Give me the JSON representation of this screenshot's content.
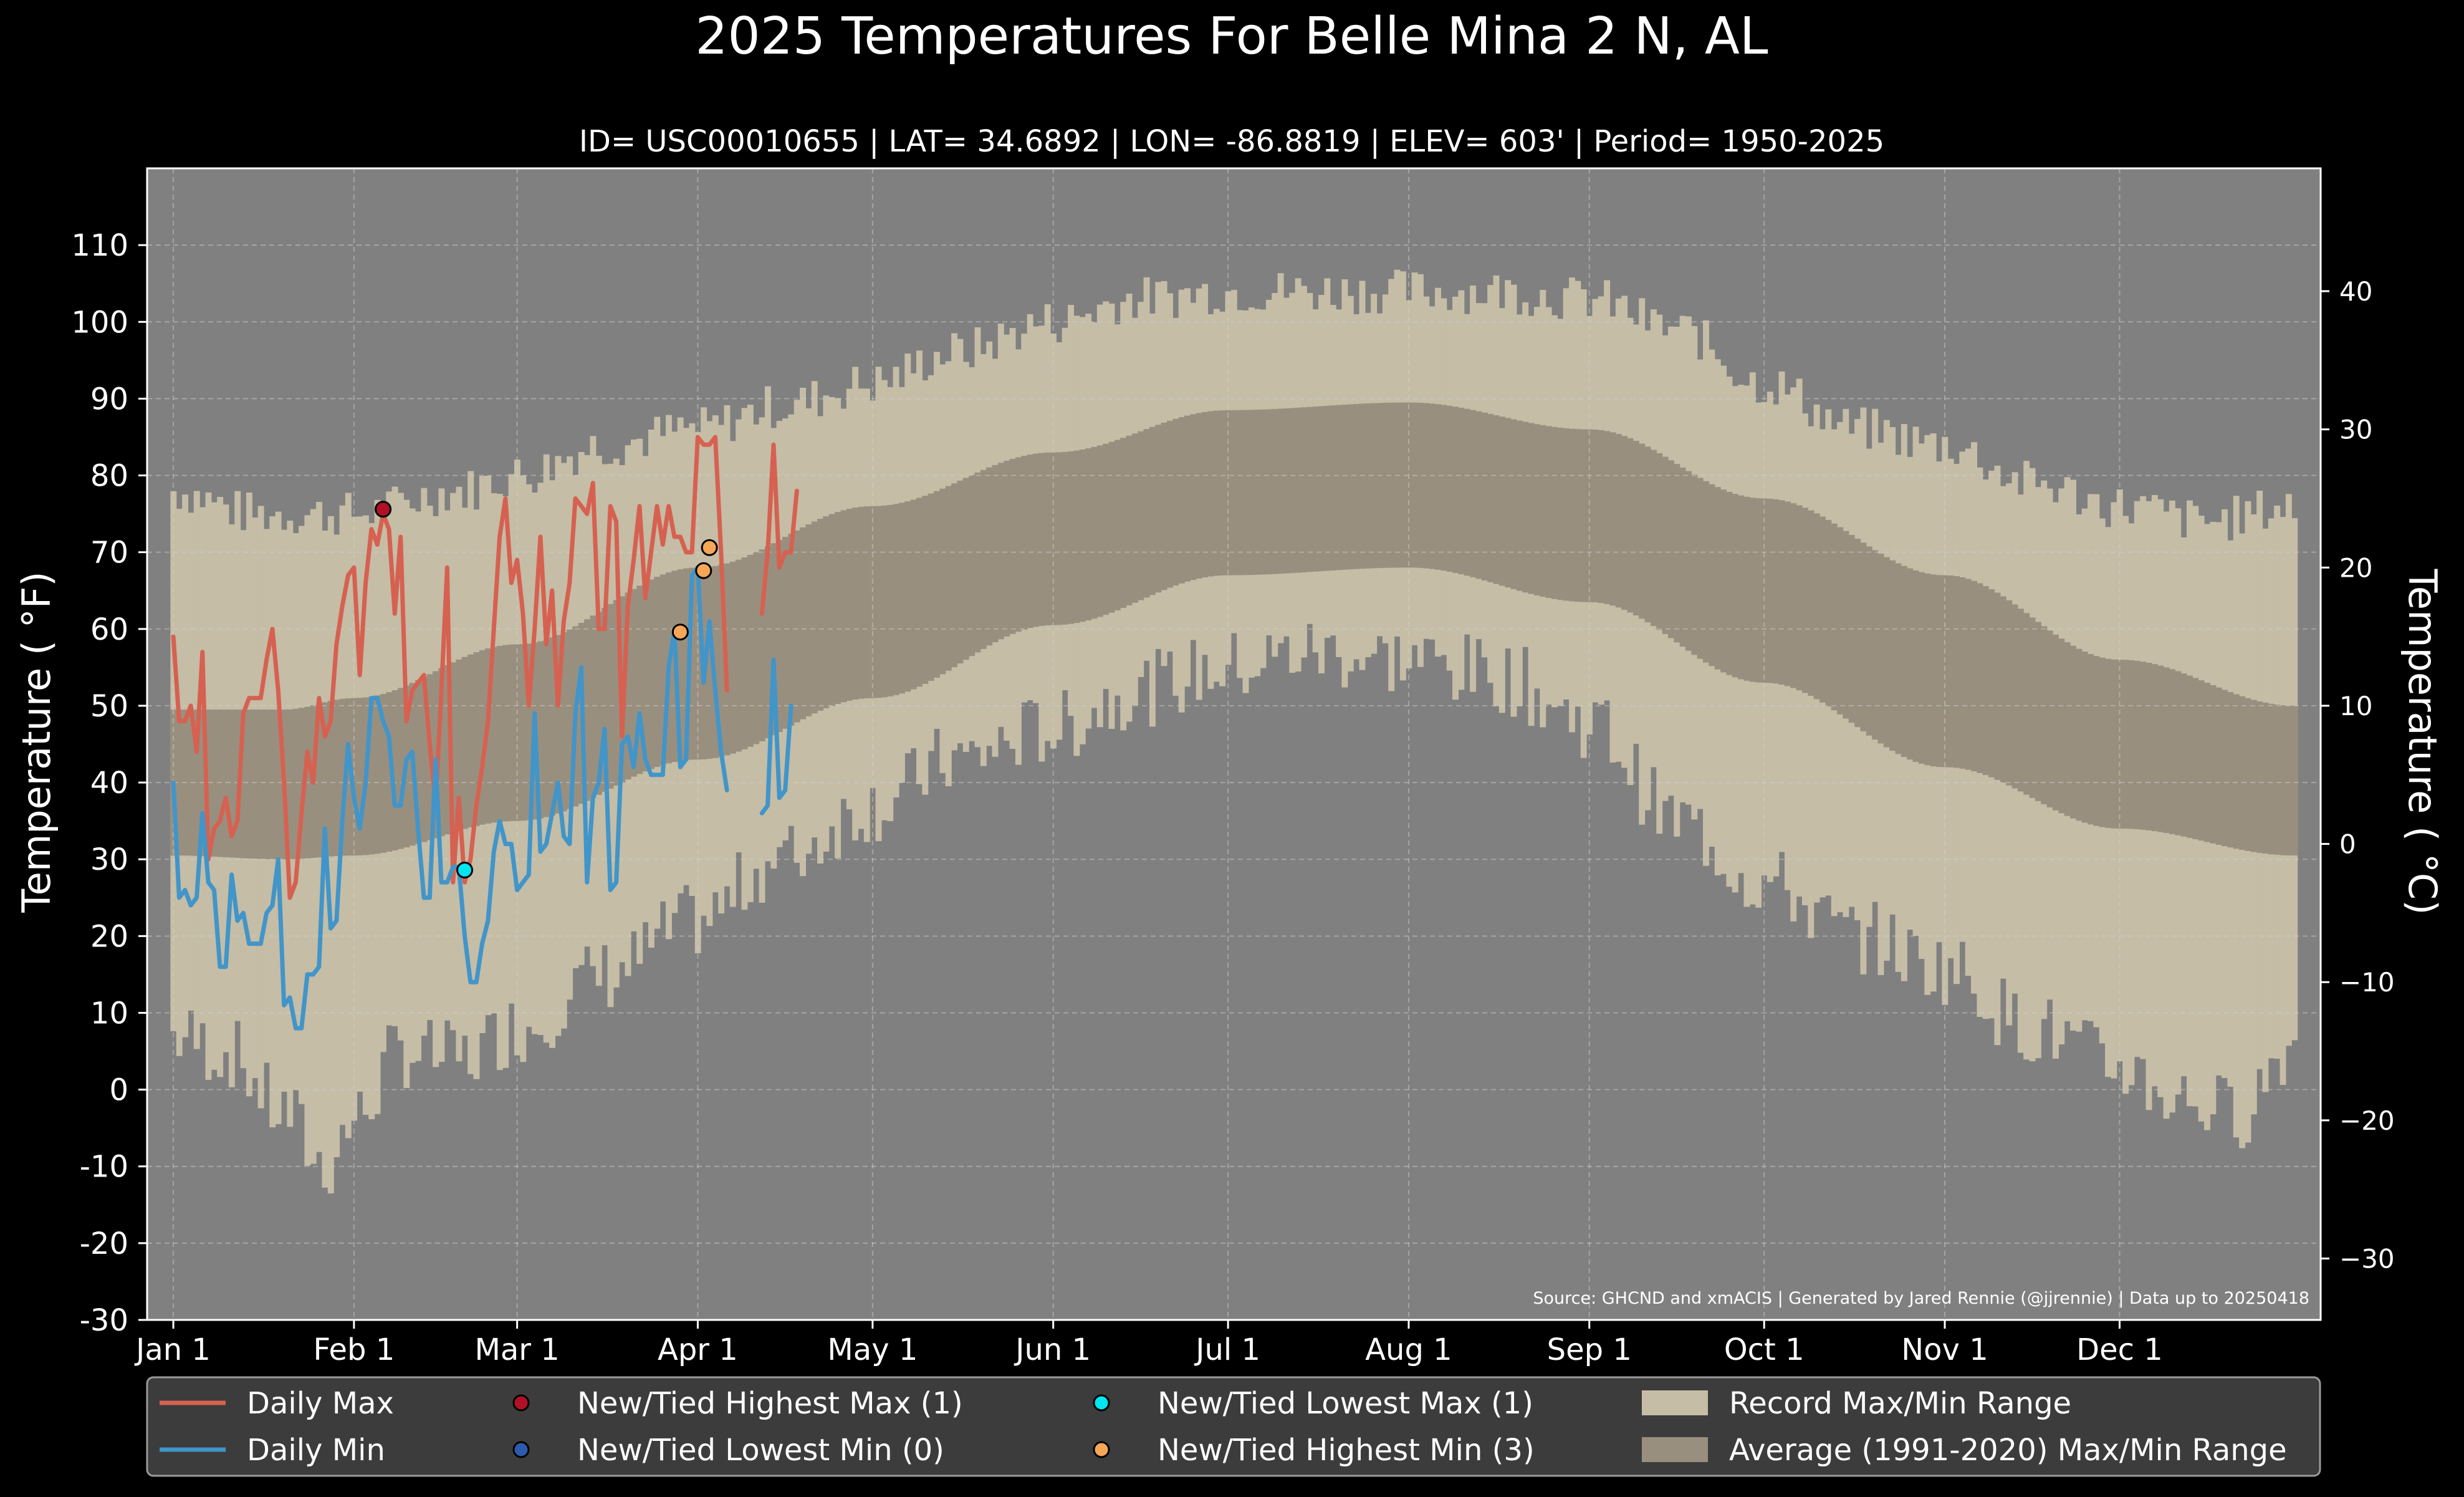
{
  "chart_data": {
    "type": "line",
    "title": "2025 Temperatures For Belle Mina 2 N, AL",
    "subtitle": "ID= USC00010655 | LAT= 34.6892 | LON= -86.8819 | ELEV= 603' | Period= 1950-2025",
    "ylabel_left": "Temperature ($^\\circ$F)",
    "ylabel_left_display": "Temperature ( °F)",
    "ylabel_right_display": "Temperature ( °C)",
    "source": "Source: GHCND and xmACIS | Generated by Jared Rennie (@jjrennie) | Data up to 20250418",
    "ylim_f": [
      -30,
      120
    ],
    "yticks_f": [
      "110",
      "100",
      "90",
      "80",
      "70",
      "60",
      "50",
      "40",
      "30",
      "20",
      "10",
      "0",
      "-10",
      "-20",
      "-30"
    ],
    "yticks_c": [
      "40",
      "30",
      "20",
      "10",
      "0",
      "−10",
      "−20",
      "−30"
    ],
    "x_month_ticks": [
      "Jan 1",
      "Feb 1",
      "Mar 1",
      "Apr 1",
      "May 1",
      "Jun 1",
      "Jul 1",
      "Aug 1",
      "Sep 1",
      "Oct 1",
      "Nov 1",
      "Dec 1"
    ],
    "x_month_doy": [
      1,
      32,
      60,
      91,
      121,
      152,
      182,
      213,
      244,
      274,
      305,
      335
    ],
    "xlim_doy": [
      -3.5,
      369.5
    ],
    "grid": true,
    "colors": {
      "background": "#000000",
      "plot_bg": "#808080",
      "record_range": "#c5bda6",
      "normal_range": "#998f7f",
      "daily_max": "#d66151",
      "daily_min": "#4195c9",
      "new_high_max": "#b11125",
      "new_low_min": "#2c5bae",
      "new_low_max": "#00e5ef",
      "new_high_min": "#f6a657"
    },
    "record_max_anchors": [
      [
        1,
        78
      ],
      [
        15,
        75
      ],
      [
        32,
        75
      ],
      [
        50,
        78
      ],
      [
        60,
        80
      ],
      [
        75,
        84
      ],
      [
        91,
        86
      ],
      [
        105,
        89
      ],
      [
        121,
        92
      ],
      [
        135,
        96
      ],
      [
        152,
        100
      ],
      [
        166,
        103
      ],
      [
        182,
        104
      ],
      [
        196,
        104
      ],
      [
        213,
        104
      ],
      [
        228,
        104
      ],
      [
        244,
        103
      ],
      [
        259,
        99
      ],
      [
        274,
        92
      ],
      [
        290,
        86
      ],
      [
        305,
        84
      ],
      [
        320,
        79
      ],
      [
        335,
        76
      ],
      [
        350,
        74
      ],
      [
        365,
        76
      ]
    ],
    "record_min_anchors": [
      [
        1,
        7
      ],
      [
        10,
        5
      ],
      [
        20,
        -3
      ],
      [
        27,
        -10
      ],
      [
        32,
        -4
      ],
      [
        40,
        5
      ],
      [
        50,
        4
      ],
      [
        60,
        8
      ],
      [
        75,
        15
      ],
      [
        91,
        22
      ],
      [
        105,
        30
      ],
      [
        121,
        37
      ],
      [
        135,
        43
      ],
      [
        152,
        47
      ],
      [
        166,
        52
      ],
      [
        182,
        55
      ],
      [
        196,
        57
      ],
      [
        213,
        56
      ],
      [
        228,
        54
      ],
      [
        244,
        48
      ],
      [
        259,
        35
      ],
      [
        274,
        27
      ],
      [
        290,
        20
      ],
      [
        305,
        16
      ],
      [
        320,
        8
      ],
      [
        335,
        3
      ],
      [
        345,
        -1
      ],
      [
        355,
        -3
      ],
      [
        365,
        6
      ]
    ],
    "normal_max_anchors": [
      [
        1,
        49.5
      ],
      [
        20,
        49.5
      ],
      [
        32,
        51
      ],
      [
        60,
        58
      ],
      [
        91,
        68
      ],
      [
        121,
        76
      ],
      [
        152,
        83
      ],
      [
        182,
        88.5
      ],
      [
        213,
        89.5
      ],
      [
        244,
        86
      ],
      [
        274,
        77
      ],
      [
        305,
        67
      ],
      [
        335,
        56
      ],
      [
        365,
        50
      ]
    ],
    "normal_min_anchors": [
      [
        1,
        30.5
      ],
      [
        20,
        30
      ],
      [
        32,
        30.5
      ],
      [
        60,
        35
      ],
      [
        91,
        43
      ],
      [
        121,
        51
      ],
      [
        152,
        60.5
      ],
      [
        182,
        67
      ],
      [
        213,
        68
      ],
      [
        244,
        63.5
      ],
      [
        274,
        53
      ],
      [
        305,
        42
      ],
      [
        335,
        34
      ],
      [
        365,
        30.5
      ]
    ],
    "series": [
      {
        "name": "Daily Max",
        "x": [
          1,
          2,
          3,
          4,
          5,
          6,
          7,
          8,
          9,
          10,
          11,
          12,
          13,
          14,
          15,
          16,
          17,
          18,
          19,
          20,
          21,
          22,
          23,
          24,
          25,
          26,
          27,
          28,
          29,
          30,
          31,
          32,
          33,
          34,
          35,
          36,
          37,
          38,
          39,
          40,
          41,
          42,
          43,
          44,
          45,
          46,
          47,
          48,
          49,
          50,
          51,
          52,
          53,
          54,
          55,
          56,
          57,
          58,
          59,
          60,
          61,
          62,
          63,
          64,
          65,
          66,
          67,
          68,
          69,
          70,
          71,
          72,
          73,
          74,
          75,
          76,
          77,
          78,
          79,
          80,
          81,
          82,
          83,
          84,
          85,
          86,
          87,
          88,
          89,
          90,
          91,
          92,
          93,
          94,
          95,
          96,
          97,
          98,
          99,
          100,
          101,
          102,
          103,
          104,
          105,
          106,
          107,
          108
        ],
        "values": [
          59,
          48,
          48,
          50,
          44,
          57,
          30,
          34,
          35,
          38,
          33,
          35,
          49,
          51,
          51,
          51,
          56,
          60,
          52,
          40,
          25,
          27,
          36,
          44,
          40,
          51,
          46,
          48,
          58,
          63,
          67,
          68,
          54,
          66,
          73,
          71,
          75,
          73,
          62,
          72,
          48,
          52,
          53,
          54,
          45,
          37,
          52,
          68,
          27,
          38,
          27,
          30,
          37,
          42,
          48,
          60,
          72,
          77,
          66,
          69,
          62,
          50,
          60,
          72,
          58,
          65,
          50,
          61,
          66,
          77,
          76,
          75,
          79,
          60,
          60,
          76,
          74,
          46,
          63,
          69,
          76,
          64,
          70,
          76,
          71,
          76,
          72,
          72,
          70,
          70,
          85,
          84,
          84,
          85,
          70,
          52,
          null,
          null,
          null,
          null,
          null,
          62,
          70,
          84,
          68,
          70,
          70,
          78
        ]
      },
      {
        "name": "Daily Min",
        "x": [
          1,
          2,
          3,
          4,
          5,
          6,
          7,
          8,
          9,
          10,
          11,
          12,
          13,
          14,
          15,
          16,
          17,
          18,
          19,
          20,
          21,
          22,
          23,
          24,
          25,
          26,
          27,
          28,
          29,
          30,
          31,
          32,
          33,
          34,
          35,
          36,
          37,
          38,
          39,
          40,
          41,
          42,
          43,
          44,
          45,
          46,
          47,
          48,
          49,
          50,
          51,
          52,
          53,
          54,
          55,
          56,
          57,
          58,
          59,
          60,
          61,
          62,
          63,
          64,
          65,
          66,
          67,
          68,
          69,
          70,
          71,
          72,
          73,
          74,
          75,
          76,
          77,
          78,
          79,
          80,
          81,
          82,
          83,
          84,
          85,
          86,
          87,
          88,
          89,
          90,
          91,
          92,
          93,
          94,
          95,
          96,
          97,
          98,
          99,
          100,
          101,
          102,
          103,
          104,
          105,
          106,
          107,
          108
        ],
        "values": [
          40,
          25,
          26,
          24,
          25,
          36,
          27,
          26,
          16,
          16,
          28,
          22,
          23,
          19,
          19,
          19,
          23,
          24,
          30,
          11,
          12,
          8,
          8,
          15,
          15,
          16,
          34,
          21,
          22,
          35,
          45,
          38,
          34,
          40,
          51,
          51,
          48,
          46,
          37,
          37,
          43,
          44,
          34,
          25,
          25,
          43,
          27,
          27,
          29,
          29,
          20,
          14,
          14,
          19,
          22,
          31,
          35,
          32,
          32,
          26,
          27,
          28,
          49,
          31,
          32,
          36,
          40,
          33,
          32,
          49,
          55,
          27,
          38,
          40,
          47,
          26,
          27,
          45,
          46,
          42,
          49,
          43,
          41,
          41,
          41,
          55,
          60,
          42,
          43,
          67,
          68,
          53,
          61,
          52,
          44,
          39,
          null,
          null,
          null,
          null,
          null,
          36,
          37,
          56,
          38,
          39,
          50,
          null
        ]
      }
    ],
    "record_points": [
      {
        "label": "New/Tied Highest Max",
        "x": 37,
        "y": 75.6,
        "color_key": "new_high_max"
      },
      {
        "label": "New/Tied Lowest Max",
        "x": 51,
        "y": 28.6,
        "color_key": "new_low_max"
      },
      {
        "label": "New/Tied Highest Min",
        "x": 88,
        "y": 59.6,
        "color_key": "new_high_min"
      },
      {
        "label": "New/Tied Highest Min",
        "x": 92,
        "y": 67.6,
        "color_key": "new_high_min"
      },
      {
        "label": "New/Tied Highest Min",
        "x": 93,
        "y": 70.6,
        "color_key": "new_high_min"
      }
    ],
    "legend": {
      "placement": "bottom",
      "entries": [
        {
          "label": "Daily Max",
          "kind": "line",
          "color_key": "daily_max"
        },
        {
          "label": "Daily Min",
          "kind": "line",
          "color_key": "daily_min"
        },
        {
          "label": "New/Tied Highest Max (1)",
          "kind": "dot",
          "color_key": "new_high_max"
        },
        {
          "label": "New/Tied Lowest Min (0)",
          "kind": "dot",
          "color_key": "new_low_min"
        },
        {
          "label": "New/Tied Lowest Max (1)",
          "kind": "dot",
          "color_key": "new_low_max"
        },
        {
          "label": "New/Tied Highest Min (3)",
          "kind": "dot",
          "color_key": "new_high_min"
        },
        {
          "label": "Record Max/Min Range",
          "kind": "box",
          "color_key": "record_range"
        },
        {
          "label": "Average (1991-2020) Max/Min Range",
          "kind": "box",
          "color_key": "normal_range"
        }
      ]
    }
  }
}
